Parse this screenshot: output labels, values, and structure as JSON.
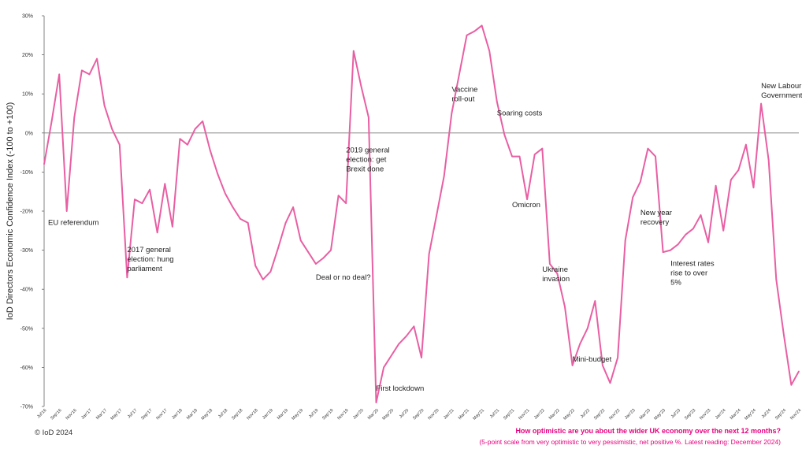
{
  "chart_data": {
    "type": "line",
    "ylabel": "IoD Directors Economic Confidence Index (-100 to +100)",
    "xlabel": "",
    "ylim": [
      -70,
      30
    ],
    "yticks": [
      "30%",
      "20%",
      "10%",
      "0%",
      "-10%",
      "-20%",
      "-30%",
      "-40%",
      "-50%",
      "-60%",
      "-70%"
    ],
    "zero_line": true,
    "grid": false,
    "line_color": "#e85fa3",
    "x_tick_labels": [
      "Jul'16",
      "Sep'16",
      "Nov'16",
      "Jan'17",
      "Mar'17",
      "May'17",
      "Jul'17",
      "Sep'17",
      "Nov'17",
      "Jan'18",
      "Mar'18",
      "May'18",
      "Jul'18",
      "Sep'18",
      "Nov'18",
      "Jan'19",
      "Mar'19",
      "May'19",
      "Jul'19",
      "Sep'19",
      "Nov'19",
      "Jan'20",
      "Mar'20",
      "May'20",
      "Jul'20",
      "Sep'20",
      "Nov'20",
      "Jan'21",
      "Mar'21",
      "May'21",
      "Jul'21",
      "Sep'21",
      "Nov'21",
      "Jan'22",
      "Mar'22",
      "May'22",
      "Jul'22",
      "Sep'22",
      "Nov'22",
      "Jan'23",
      "Mar'23",
      "May'23",
      "Jul'23",
      "Sep'23",
      "Nov'23",
      "Jan'24",
      "Mar'24",
      "May'24",
      "Jul'24",
      "Sep'24",
      "Nov'24"
    ],
    "series": [
      {
        "values": [
          -8,
          3,
          15,
          -20,
          4,
          16,
          15,
          19,
          7,
          1,
          -3,
          -37,
          -17,
          -18,
          -14.5,
          -25.5,
          -13,
          -24,
          -1.5,
          -3,
          1,
          3,
          -4.5,
          -10.5,
          -15.5,
          -19,
          -22,
          -23,
          -34,
          -37.5,
          -35.5,
          -29.5,
          -23,
          -19,
          -27.5,
          -30.5,
          -33.5,
          -32,
          -30,
          -16,
          -18,
          21,
          12,
          4,
          -69,
          -60,
          -57,
          -54,
          -52,
          -49.5,
          -57.5,
          -31,
          -21,
          -11,
          5,
          15,
          25,
          26,
          27.5,
          21,
          8,
          -0.5,
          -6,
          -6,
          -17,
          -5.5,
          -4,
          -33.5,
          -36,
          -44.5,
          -59.5,
          -54,
          -50,
          -43,
          -59.5,
          -64,
          -57.5,
          -27.5,
          -16.5,
          -12.5,
          -4,
          -6,
          -30.5,
          -30,
          -28.5,
          -26,
          -24.5,
          -21,
          -28,
          -13.5,
          -25,
          -12,
          -9.5,
          -3,
          -14,
          7.5,
          -7,
          -37.5,
          -51.5,
          -64.5,
          -61
        ]
      }
    ],
    "annotations": [
      {
        "lines": [
          "EU referendum"
        ],
        "month_index": 0,
        "y": -23.5
      },
      {
        "lines": [
          "2017 general",
          "election: hung",
          "parliament"
        ],
        "month_index": 11,
        "y": -30.5
      },
      {
        "lines": [
          "2019 general",
          "election: get",
          "Brexit done"
        ],
        "month_index": 40,
        "y": -5
      },
      {
        "lines": [
          "Deal or no deal?"
        ],
        "month_index": 36,
        "y": -37.5
      },
      {
        "lines": [
          "First lockdown"
        ],
        "month_index": 44,
        "y": -66
      },
      {
        "lines": [
          "Vaccine",
          "roll-out"
        ],
        "month_index": 54,
        "y": 10.5
      },
      {
        "lines": [
          "Soaring costs"
        ],
        "month_index": 60,
        "y": 4.5
      },
      {
        "lines": [
          "Omicron"
        ],
        "month_index": 62,
        "y": -19
      },
      {
        "lines": [
          "Ukraine",
          "invasion"
        ],
        "month_index": 66,
        "y": -35.5
      },
      {
        "lines": [
          "Mini-budget"
        ],
        "month_index": 70,
        "y": -58.5
      },
      {
        "lines": [
          "New year",
          "recovery"
        ],
        "month_index": 79,
        "y": -21
      },
      {
        "lines": [
          "Interest rates",
          "rise to over",
          "5%"
        ],
        "month_index": 83,
        "y": -34
      },
      {
        "lines": [
          "New Labour",
          "Government"
        ],
        "month_index": 95,
        "y": 11.5
      }
    ]
  },
  "footer": {
    "copyright": "© IoD 2024",
    "question": "How optimistic are you about the wider UK economy over the next 12 months?",
    "note": "(5-point scale from very optimistic to very pessimistic, net positive %. Latest reading: December 2024)"
  }
}
